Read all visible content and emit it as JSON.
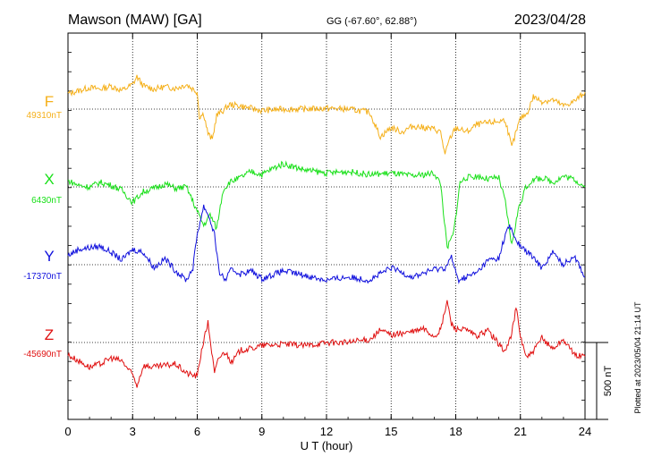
{
  "header": {
    "station": "Mawson (MAW)  [GA]",
    "coords": "GG (-67.60°,  62.88°)",
    "date": "2023/04/28"
  },
  "side_note": "Plotted at 2023/05/04 21:14 UT",
  "scale_label": "500 nT",
  "colors": {
    "F": "#f5b01a",
    "X": "#19e019",
    "Y": "#1010dd",
    "Z": "#e01010",
    "axis": "#000000",
    "grid": "#000000"
  },
  "chart_data": {
    "type": "line",
    "xlabel": "U T (hour)",
    "xlim": [
      0,
      24
    ],
    "x_ticks": [
      "0",
      "3",
      "6",
      "9",
      "12",
      "15",
      "18",
      "21",
      "24"
    ],
    "grid": "dotted",
    "scale_bar_nT": 500,
    "series": [
      {
        "name": "F",
        "baseline_label": "49310nT",
        "baseline_nT": 49310,
        "x": [
          0,
          0.5,
          1,
          1.5,
          2,
          2.5,
          3,
          3.2,
          3.5,
          4,
          4.5,
          5,
          5.5,
          6,
          6.1,
          6.3,
          6.5,
          6.7,
          6.9,
          7.2,
          7.5,
          8,
          9,
          10,
          11,
          12,
          13,
          14,
          14.5,
          15,
          15.5,
          16,
          16.5,
          17,
          17.3,
          17.5,
          17.7,
          18,
          18.5,
          19,
          19.5,
          20,
          20.3,
          20.6,
          20.8,
          21,
          21.3,
          21.6,
          22,
          22.5,
          23,
          23.5,
          24
        ],
        "y": [
          100,
          120,
          140,
          130,
          150,
          120,
          160,
          210,
          150,
          130,
          145,
          135,
          160,
          110,
          -50,
          -30,
          -160,
          -200,
          -40,
          -10,
          30,
          20,
          -10,
          0,
          0,
          5,
          0,
          -20,
          -180,
          -120,
          -150,
          -110,
          -120,
          -130,
          -150,
          -300,
          -200,
          -120,
          -150,
          -100,
          -90,
          -80,
          -70,
          -250,
          -150,
          -60,
          -30,
          80,
          50,
          60,
          20,
          50,
          110
        ]
      },
      {
        "name": "X",
        "baseline_label": "6430nT",
        "baseline_nT": 6430,
        "x": [
          0,
          0.5,
          1,
          1.5,
          2,
          2.5,
          3,
          3.5,
          4,
          4.5,
          5,
          5.5,
          6,
          6.3,
          6.6,
          6.9,
          7.2,
          7.5,
          8,
          8.5,
          9,
          9.5,
          10,
          11,
          12,
          13,
          14,
          15,
          16,
          17,
          17.3,
          17.6,
          17.9,
          18.2,
          18.5,
          19,
          19.5,
          20,
          20.3,
          20.6,
          20.9,
          21.2,
          21.5,
          22,
          22.5,
          23,
          23.5,
          24
        ],
        "y": [
          40,
          10,
          0,
          30,
          10,
          -20,
          -100,
          -30,
          -10,
          20,
          -10,
          0,
          -160,
          -250,
          -180,
          -270,
          -20,
          30,
          60,
          100,
          80,
          120,
          150,
          110,
          90,
          100,
          80,
          90,
          70,
          90,
          20,
          -400,
          -300,
          30,
          60,
          70,
          50,
          60,
          -100,
          -380,
          -150,
          -20,
          40,
          60,
          30,
          70,
          50,
          0
        ]
      },
      {
        "name": "Y",
        "baseline_label": "-17370nT",
        "baseline_nT": -17370,
        "x": [
          0,
          0.5,
          1,
          1.5,
          2,
          2.5,
          3,
          3.5,
          4,
          4.5,
          5,
          5.5,
          5.8,
          6,
          6.3,
          6.5,
          6.8,
          7,
          7.3,
          7.6,
          8,
          8.5,
          9,
          10,
          11,
          12,
          13,
          14,
          15,
          16,
          17,
          17.5,
          17.8,
          18.1,
          18.5,
          19,
          19.5,
          20,
          20.3,
          20.5,
          20.8,
          21,
          21.5,
          22,
          22.5,
          23,
          23.5,
          24
        ],
        "y": [
          60,
          100,
          110,
          120,
          80,
          30,
          100,
          80,
          -20,
          40,
          -40,
          -100,
          -20,
          200,
          380,
          330,
          200,
          -40,
          -100,
          -30,
          -60,
          -40,
          -90,
          -40,
          -70,
          -100,
          -80,
          -100,
          -20,
          -80,
          -30,
          -20,
          50,
          -100,
          -80,
          -50,
          30,
          40,
          200,
          250,
          160,
          120,
          60,
          -20,
          80,
          0,
          60,
          -80
        ]
      },
      {
        "name": "Z",
        "baseline_label": "-45690nT",
        "baseline_nT": -45690,
        "x": [
          0,
          0.5,
          1,
          1.5,
          2,
          2.5,
          3,
          3.2,
          3.5,
          4,
          4.5,
          5,
          5.5,
          6,
          6.2,
          6.5,
          6.8,
          7,
          7.3,
          7.6,
          8,
          8.5,
          9,
          10,
          11,
          12,
          13,
          14,
          14.5,
          15,
          15.5,
          16,
          16.5,
          17,
          17.3,
          17.6,
          17.8,
          18,
          18.5,
          19,
          19.5,
          20,
          20.3,
          20.6,
          20.8,
          21,
          21.3,
          21.6,
          22,
          22.5,
          23,
          23.5,
          24
        ],
        "y": [
          -80,
          -120,
          -160,
          -140,
          -100,
          -120,
          -210,
          -280,
          -150,
          -160,
          -150,
          -140,
          -200,
          -220,
          -50,
          130,
          -200,
          -100,
          -60,
          -130,
          -50,
          -40,
          -20,
          -10,
          -20,
          0,
          0,
          20,
          80,
          50,
          60,
          70,
          90,
          40,
          80,
          270,
          120,
          90,
          80,
          40,
          80,
          -10,
          -60,
          60,
          230,
          40,
          -100,
          -60,
          30,
          -40,
          20,
          -80,
          -90
        ]
      }
    ]
  }
}
